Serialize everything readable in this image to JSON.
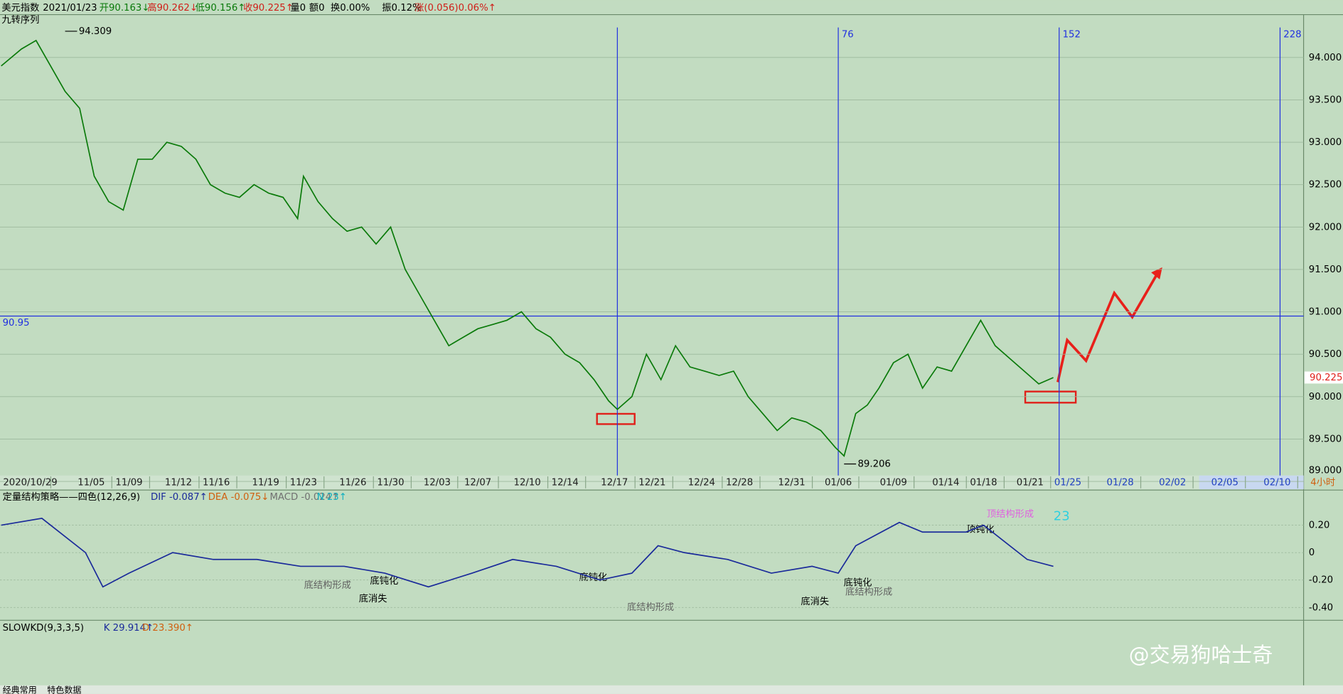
{
  "header": {
    "name": "美元指数",
    "date": "2021/01/23",
    "open": "开90.163↓",
    "high": "高90.262↓",
    "low": "低90.156↑",
    "close": "收90.225↑",
    "volume": "量0",
    "amount": "额0",
    "turnover": "换0.00%",
    "amplitude": "振0.12%",
    "change": "涨(0.056)0.06%↑"
  },
  "indicator": "九转序列",
  "chart_data": [
    {
      "type": "line",
      "color": "#0a7a0a",
      "x": [
        -212,
        -205,
        -200,
        -190,
        -185,
        -180,
        -175,
        -170,
        -165,
        -160,
        -155,
        -150,
        -145,
        -140,
        -135,
        -130,
        -125,
        -120,
        -115,
        -110,
        -108,
        -103,
        -98,
        -93,
        -88,
        -83,
        -78,
        -73,
        -68,
        -63,
        -58,
        -53,
        -48,
        -43,
        -38,
        -33,
        -28,
        -23,
        -18,
        -13,
        -8,
        -3,
        0,
        5,
        10,
        15,
        20,
        25,
        30,
        35,
        40,
        45,
        50,
        55,
        60,
        65,
        70,
        75,
        78,
        82,
        86,
        90,
        95,
        100,
        105,
        110,
        115,
        120,
        125,
        130,
        135,
        140,
        145,
        150
      ],
      "values": [
        93.9,
        94.1,
        94.2,
        93.6,
        93.4,
        92.6,
        92.3,
        92.2,
        92.8,
        92.8,
        93.0,
        92.95,
        92.8,
        92.5,
        92.4,
        92.35,
        92.5,
        92.4,
        92.35,
        92.1,
        92.6,
        92.3,
        92.1,
        91.95,
        92.0,
        91.8,
        92.0,
        91.5,
        91.2,
        90.9,
        90.6,
        90.7,
        90.8,
        90.85,
        90.9,
        91.0,
        90.8,
        90.7,
        90.5,
        90.4,
        90.2,
        89.95,
        89.85,
        90.0,
        90.5,
        90.2,
        90.6,
        90.35,
        90.3,
        90.25,
        90.3,
        90.0,
        89.8,
        89.6,
        89.75,
        89.7,
        89.6,
        89.4,
        89.3,
        89.8,
        89.9,
        90.1,
        90.4,
        90.5,
        90.1,
        90.35,
        90.3,
        90.6,
        90.9,
        90.6,
        90.45,
        90.3,
        90.15,
        90.225
      ],
      "xlim": [
        -212.4,
        236.1
      ],
      "ylim": [
        89.09,
        94.505
      ],
      "yticks": [
        {
          "value": 94,
          "label": "94.000"
        },
        {
          "value": 93.5,
          "label": "93.500"
        },
        {
          "value": 93,
          "label": "93.000"
        },
        {
          "value": 92.5,
          "label": "92.500"
        },
        {
          "value": 92,
          "label": "92.000"
        },
        {
          "value": 91.5,
          "label": "91.500"
        },
        {
          "value": 91,
          "label": "91.000"
        },
        {
          "value": 90.5,
          "label": "90.500"
        },
        {
          "value": 90,
          "label": "90.000"
        },
        {
          "value": 89.5,
          "label": "89.500"
        },
        {
          "value": 89,
          "label": "89.000"
        }
      ],
      "xticks": [
        {
          "value": -202,
          "label": "2020/10/29"
        },
        {
          "value": -181,
          "label": "11/05"
        },
        {
          "value": -168,
          "label": "11/09"
        },
        {
          "value": -151,
          "label": "11/12"
        },
        {
          "value": -138,
          "label": "11/16"
        },
        {
          "value": -121,
          "label": "11/19"
        },
        {
          "value": -108,
          "label": "11/23"
        },
        {
          "value": -91,
          "label": "11/26"
        },
        {
          "value": -78,
          "label": "11/30"
        },
        {
          "value": -62,
          "label": "12/03"
        },
        {
          "value": -48,
          "label": "12/07"
        },
        {
          "value": -31,
          "label": "12/10"
        },
        {
          "value": -18,
          "label": "12/14"
        },
        {
          "value": -1,
          "label": "12/17"
        },
        {
          "value": 12,
          "label": "12/21"
        },
        {
          "value": 29,
          "label": "12/24"
        },
        {
          "value": 42,
          "label": "12/28"
        },
        {
          "value": 60,
          "label": "12/31"
        },
        {
          "value": 76,
          "label": "01/06"
        },
        {
          "value": 95,
          "label": "01/09"
        },
        {
          "value": 113,
          "label": "01/14"
        },
        {
          "value": 126,
          "label": "01/18"
        },
        {
          "value": 142,
          "label": "01/21"
        },
        {
          "value": 155,
          "label": "01/25"
        },
        {
          "value": 173,
          "label": "01/28"
        },
        {
          "value": 191,
          "label": "02/02"
        },
        {
          "value": 209,
          "label": "02/05"
        },
        {
          "value": 227,
          "label": "02/10"
        }
      ],
      "vlines": [
        0,
        76,
        152,
        228
      ],
      "hline": 90.95,
      "extremes": [
        {
          "x": -190,
          "y": 94.309
        },
        {
          "x": 78,
          "y": 89.206
        }
      ],
      "last_price": 90.225,
      "period": "4小时"
    },
    {
      "type": "line",
      "title": "定量结构策略——四色(12,26,9)",
      "dif_label": "DIF -0.087↑",
      "dea_label": "DEA -0.075↓",
      "macd_label": "MACD -0.024↑",
      "n_label": "N 23↑",
      "color": "#1a2a9a",
      "x": [
        -212,
        -198,
        -183,
        -177,
        -168,
        -153,
        -139,
        -124,
        -109,
        -94,
        -80,
        -65,
        -50,
        -36,
        -21,
        -6,
        5,
        14,
        23,
        38,
        53,
        67,
        76,
        82,
        97,
        105,
        120,
        126,
        141,
        150
      ],
      "values": [
        0.2,
        0.25,
        0.0,
        -0.25,
        -0.15,
        0.0,
        -0.05,
        -0.05,
        -0.1,
        -0.1,
        -0.15,
        -0.25,
        -0.15,
        -0.05,
        -0.1,
        -0.2,
        -0.15,
        0.05,
        0.0,
        -0.05,
        -0.15,
        -0.1,
        -0.15,
        0.05,
        0.22,
        0.15,
        0.15,
        0.2,
        -0.05,
        -0.1
      ],
      "xlim": [
        -212.4,
        236.1
      ],
      "ylim": [
        -0.481,
        0.45
      ],
      "yticks": [
        {
          "value": 0.2,
          "label": "0.20"
        },
        0,
        {
          "value": -0.2,
          "label": "-0.20"
        },
        {
          "value": -0.4,
          "label": "-0.40"
        }
      ],
      "annotations": [
        "顶结构形成",
        "23",
        "顶钝化",
        "底钝化",
        "底结构形成",
        "底消失",
        "底钝化",
        "底结构形成",
        "底消失",
        "底钝化",
        "底结构形成"
      ]
    }
  ],
  "kd": {
    "title": "SLOWKD(9,3,3,5)",
    "k": "K 29.914↑",
    "d": "D 23.390↑"
  },
  "watermark": "@交易狗哈士奇",
  "tabs": [
    "经典常用",
    "特色数据"
  ]
}
